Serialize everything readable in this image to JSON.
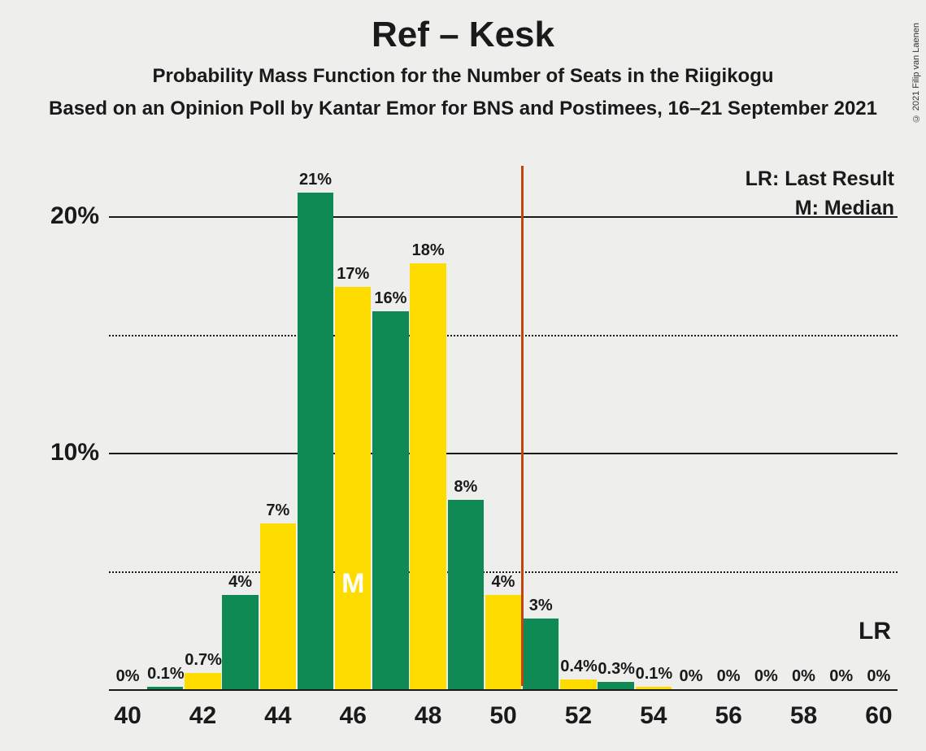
{
  "title": "Ref – Kesk",
  "subtitle1": "Probability Mass Function for the Number of Seats in the Riigikogu",
  "subtitle2": "Based on an Opinion Poll by Kantar Emor for BNS and Postimees, 16–21 September 2021",
  "copyright": "© 2021 Filip van Laenen",
  "legend_lr": "LR: Last Result",
  "legend_m": "M: Median",
  "lr_mark": "LR",
  "median_mark": "M",
  "chart": {
    "type": "bar",
    "background_color": "#eeeeec",
    "text_color": "#1a1a1a",
    "lr_line_color": "#c1440e",
    "colors": {
      "green": "#0f8a55",
      "yellow": "#ffdc00"
    },
    "x_min": 40,
    "x_max": 60,
    "x_tick_step": 2,
    "y_max": 22,
    "y_major_ticks": [
      10,
      20
    ],
    "y_minor_ticks": [
      5,
      15
    ],
    "lr_value": 50.5,
    "median_index": 6,
    "bars": [
      {
        "x": 40,
        "value": 0,
        "label": "0%",
        "color": "yellow"
      },
      {
        "x": 41,
        "value": 0.1,
        "label": "0.1%",
        "color": "green"
      },
      {
        "x": 42,
        "value": 0.7,
        "label": "0.7%",
        "color": "yellow"
      },
      {
        "x": 43,
        "value": 4,
        "label": "4%",
        "color": "green"
      },
      {
        "x": 44,
        "value": 7,
        "label": "7%",
        "color": "yellow"
      },
      {
        "x": 45,
        "value": 21,
        "label": "21%",
        "color": "green"
      },
      {
        "x": 46,
        "value": 17,
        "label": "17%",
        "color": "yellow"
      },
      {
        "x": 47,
        "value": 16,
        "label": "16%",
        "color": "green"
      },
      {
        "x": 48,
        "value": 18,
        "label": "18%",
        "color": "yellow"
      },
      {
        "x": 49,
        "value": 8,
        "label": "8%",
        "color": "green"
      },
      {
        "x": 50,
        "value": 4,
        "label": "4%",
        "color": "yellow"
      },
      {
        "x": 51,
        "value": 3,
        "label": "3%",
        "color": "green"
      },
      {
        "x": 52,
        "value": 0.4,
        "label": "0.4%",
        "color": "yellow"
      },
      {
        "x": 53,
        "value": 0.3,
        "label": "0.3%",
        "color": "green"
      },
      {
        "x": 54,
        "value": 0.1,
        "label": "0.1%",
        "color": "yellow"
      },
      {
        "x": 55,
        "value": 0,
        "label": "0%",
        "color": "green"
      },
      {
        "x": 56,
        "value": 0,
        "label": "0%",
        "color": "yellow"
      },
      {
        "x": 57,
        "value": 0,
        "label": "0%",
        "color": "green"
      },
      {
        "x": 58,
        "value": 0,
        "label": "0%",
        "color": "yellow"
      },
      {
        "x": 59,
        "value": 0,
        "label": "0%",
        "color": "green"
      },
      {
        "x": 60,
        "value": 0,
        "label": "0%",
        "color": "yellow"
      }
    ]
  }
}
